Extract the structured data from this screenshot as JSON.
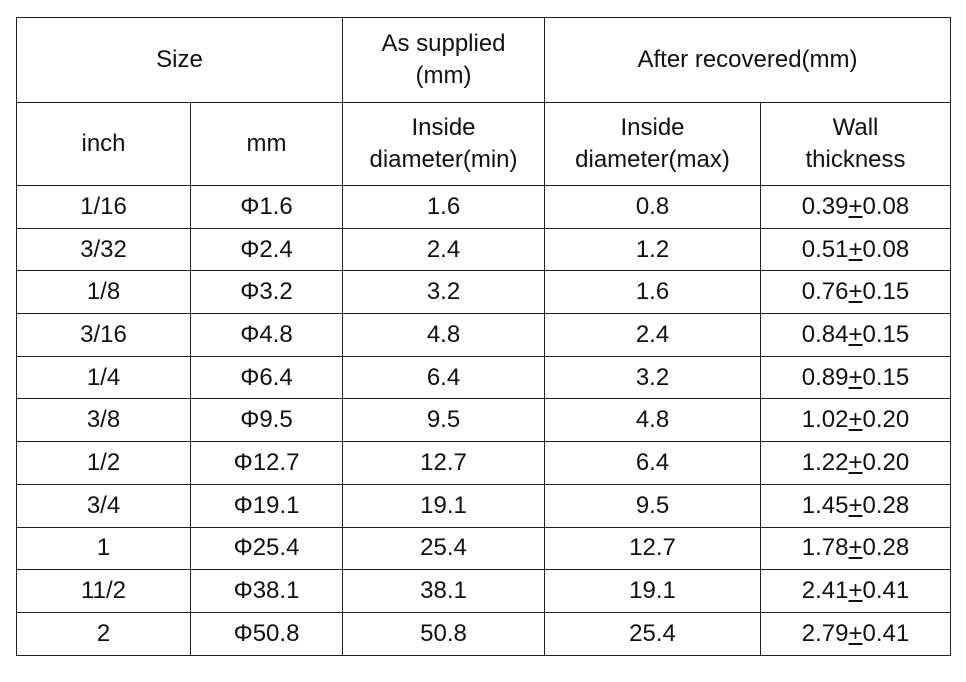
{
  "table": {
    "header": {
      "row1": [
        "Size",
        "As supplied\n(mm)",
        "After recovered(mm)"
      ],
      "row2": [
        "inch",
        "mm",
        "Inside\ndiameter(min)",
        "Inside\ndiameter(max)",
        "Wall\nthickness"
      ]
    },
    "rows": [
      [
        "1/16",
        "Φ1.6",
        "1.6",
        "0.8",
        "0.39+0.08"
      ],
      [
        "3/32",
        "Φ2.4",
        "2.4",
        "1.2",
        "0.51+0.08"
      ],
      [
        "1/8",
        "Φ3.2",
        "3.2",
        "1.6",
        "0.76+0.15"
      ],
      [
        "3/16",
        "Φ4.8",
        "4.8",
        "2.4",
        "0.84+0.15"
      ],
      [
        "1/4",
        "Φ6.4",
        "6.4",
        "3.2",
        "0.89+0.15"
      ],
      [
        "3/8",
        "Φ9.5",
        "9.5",
        "4.8",
        "1.02+0.20"
      ],
      [
        "1/2",
        "Φ12.7",
        "12.7",
        "6.4",
        "1.22+0.20"
      ],
      [
        "3/4",
        "Φ19.1",
        "19.1",
        "9.5",
        "1.45+0.28"
      ],
      [
        "1",
        "Φ25.4",
        "25.4",
        "12.7",
        "1.78+0.28"
      ],
      [
        "11/2",
        "Φ38.1",
        "38.1",
        "19.1",
        "2.41+0.41"
      ],
      [
        "2",
        "Φ50.8",
        "50.8",
        "25.4",
        "2.79+0.41"
      ]
    ]
  }
}
